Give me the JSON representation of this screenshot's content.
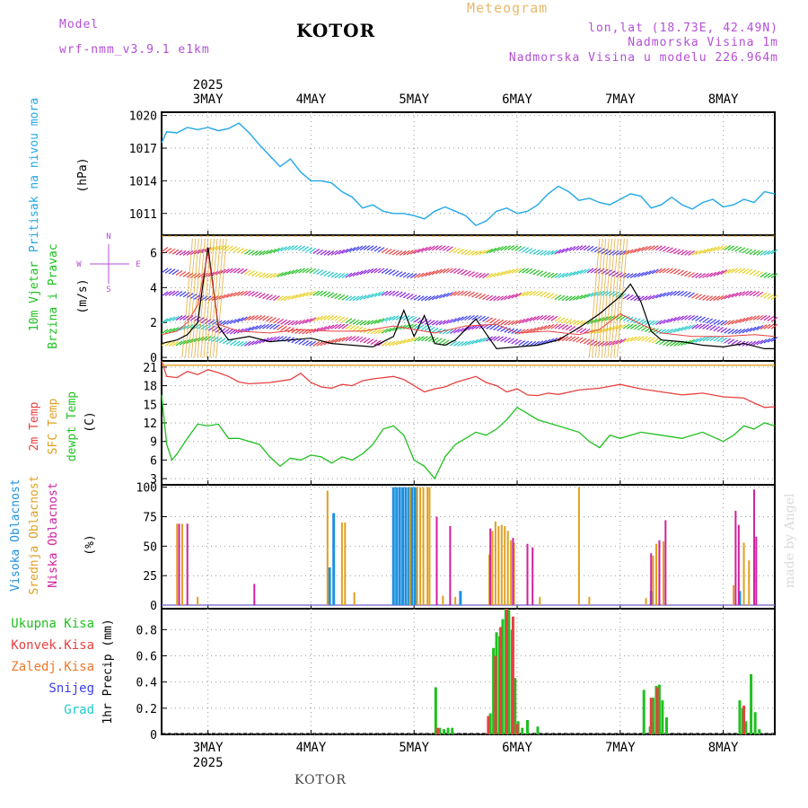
{
  "header": {
    "model_label": "Model",
    "model_name": "wrf-nmm_v3.9.1 e1km",
    "city": "KOTOR",
    "meteogram": "Meteogram",
    "lonlat": "lon,lat (18.73E, 42.49N)",
    "elevation": "Nadmorska Visina 1m",
    "model_elevation": "Nadmorska Visina u modelu 226.964m"
  },
  "footer": {
    "city": "KOTOR",
    "watermark": "made by Angel"
  },
  "colors": {
    "pressure": "#22a8e8",
    "temp2m": "#e84040",
    "sfc": "#e0a020",
    "dewpt": "#20c020",
    "high_cloud": "#1e90e0",
    "mid_cloud": "#e0a020",
    "low_cloud": "#d020a0",
    "precip_total": "#20c020",
    "precip_conv": "#e84040"
  },
  "chart_data": [
    {
      "type": "line",
      "panel": "pressure",
      "ylabels": [
        "Pritisak na nivou mora",
        "(hPa)"
      ],
      "x_days": [
        "3MAY",
        "4MAY",
        "5MAY",
        "6MAY",
        "7MAY",
        "8MAY"
      ],
      "year_label": "2025",
      "xlim": [
        2.55,
        8.5
      ],
      "ylim": [
        1009,
        1020.3
      ],
      "yticks": [
        1011,
        1014,
        1017,
        1020
      ],
      "series": [
        {
          "color": "#22a8e8",
          "x": [
            2.55,
            2.6,
            2.7,
            2.8,
            2.9,
            3.0,
            3.1,
            3.2,
            3.3,
            3.4,
            3.5,
            3.6,
            3.7,
            3.8,
            3.9,
            4.0,
            4.1,
            4.2,
            4.3,
            4.4,
            4.5,
            4.6,
            4.7,
            4.8,
            4.9,
            5.0,
            5.1,
            5.2,
            5.3,
            5.4,
            5.5,
            5.6,
            5.7,
            5.8,
            5.9,
            6.0,
            6.1,
            6.2,
            6.3,
            6.4,
            6.5,
            6.6,
            6.7,
            6.8,
            6.9,
            7.0,
            7.1,
            7.2,
            7.3,
            7.4,
            7.5,
            7.6,
            7.7,
            7.8,
            7.9,
            8.0,
            8.1,
            8.2,
            8.3,
            8.4,
            8.5
          ],
          "y": [
            1017.5,
            1018.5,
            1018.4,
            1018.9,
            1018.7,
            1018.9,
            1018.6,
            1018.8,
            1019.3,
            1018.4,
            1017.3,
            1016.3,
            1015.3,
            1016.0,
            1014.8,
            1014.0,
            1014.0,
            1013.8,
            1013.0,
            1012.5,
            1011.5,
            1011.8,
            1011.2,
            1011.0,
            1011.0,
            1010.8,
            1010.5,
            1011.2,
            1011.6,
            1011.2,
            1010.8,
            1009.9,
            1010.3,
            1011.2,
            1011.5,
            1011.0,
            1011.2,
            1011.8,
            1012.8,
            1013.5,
            1013.0,
            1012.2,
            1012.4,
            1012.0,
            1011.8,
            1012.3,
            1012.8,
            1012.6,
            1011.5,
            1011.8,
            1012.5,
            1011.8,
            1011.4,
            1012.0,
            1012.3,
            1011.6,
            1011.8,
            1012.3,
            1012.0,
            1013.0,
            1012.8
          ]
        }
      ]
    },
    {
      "type": "line",
      "panel": "wind",
      "ylabels": [
        "10m Vjetar",
        "Brzina i Pravac",
        "(m/s)"
      ],
      "compass": [
        "N",
        "W",
        "E",
        "S"
      ],
      "ylim": [
        -0.2,
        7.0
      ],
      "yticks": [
        0,
        2,
        4,
        6
      ],
      "barb_levels": [
        0.8,
        1.5,
        2.0,
        3.4,
        4.7,
        6.0
      ],
      "series": [
        {
          "name": "speed",
          "color": "#000000",
          "x": [
            2.55,
            2.7,
            2.8,
            2.9,
            3.0,
            3.1,
            3.2,
            3.4,
            3.6,
            3.8,
            4.0,
            4.2,
            4.4,
            4.6,
            4.8,
            4.9,
            5.0,
            5.1,
            5.2,
            5.3,
            5.4,
            5.6,
            5.8,
            6.0,
            6.2,
            6.4,
            6.6,
            6.8,
            7.0,
            7.1,
            7.2,
            7.3,
            7.4,
            7.6,
            7.8,
            8.0,
            8.2,
            8.4,
            8.5
          ],
          "y": [
            0.8,
            1.0,
            1.3,
            2.0,
            6.3,
            1.8,
            1.0,
            1.2,
            0.9,
            1.0,
            1.1,
            0.8,
            0.7,
            0.6,
            1.2,
            2.7,
            1.2,
            2.4,
            0.8,
            0.7,
            1.0,
            2.2,
            0.5,
            0.6,
            0.7,
            1.0,
            1.7,
            2.5,
            3.5,
            4.2,
            3.2,
            1.5,
            1.0,
            0.9,
            0.7,
            0.6,
            0.8,
            0.5,
            0.5
          ]
        },
        {
          "name": "gust",
          "color": "#e84040",
          "x": [
            2.55,
            2.7,
            2.8,
            2.9,
            3.0,
            3.1,
            3.3,
            3.6,
            3.9,
            4.2,
            4.5,
            4.8,
            5.0,
            5.2,
            5.5,
            5.8,
            6.0,
            6.3,
            6.6,
            6.8,
            7.0,
            7.2,
            7.4,
            7.7,
            8.0,
            8.3,
            8.5
          ],
          "y": [
            1.3,
            1.5,
            2.0,
            3.0,
            6.0,
            1.9,
            1.5,
            1.4,
            1.6,
            1.5,
            1.5,
            1.8,
            1.6,
            1.4,
            1.8,
            1.9,
            1.4,
            1.5,
            1.3,
            1.6,
            2.5,
            1.9,
            1.4,
            1.2,
            1.2,
            1.3,
            1.2
          ]
        }
      ]
    },
    {
      "type": "line",
      "panel": "temperature",
      "ylabels": [
        "2m Temp",
        "SFC Temp",
        "dewpt Temp",
        "(C)"
      ],
      "ylim": [
        2,
        22
      ],
      "yticks": [
        3,
        6,
        9,
        12,
        15,
        18,
        21
      ],
      "series": [
        {
          "name": "2m Temp",
          "color": "#e84040",
          "x": [
            2.55,
            2.6,
            2.7,
            2.8,
            2.9,
            3.0,
            3.1,
            3.2,
            3.3,
            3.4,
            3.6,
            3.8,
            3.9,
            4.0,
            4.1,
            4.2,
            4.3,
            4.4,
            4.5,
            4.6,
            4.8,
            4.9,
            5.0,
            5.1,
            5.2,
            5.3,
            5.4,
            5.6,
            5.7,
            5.8,
            5.9,
            6.0,
            6.1,
            6.2,
            6.3,
            6.4,
            6.6,
            6.8,
            7.0,
            7.2,
            7.4,
            7.6,
            7.8,
            8.0,
            8.2,
            8.3,
            8.4,
            8.5
          ],
          "y": [
            22.0,
            19.5,
            19.3,
            20.3,
            19.8,
            20.6,
            20.1,
            19.5,
            18.6,
            18.3,
            18.5,
            19.0,
            20.0,
            18.5,
            17.8,
            17.6,
            18.2,
            18.0,
            18.8,
            19.1,
            19.5,
            19.0,
            18.0,
            17.0,
            17.5,
            17.8,
            18.5,
            19.5,
            18.5,
            18.0,
            17.0,
            17.5,
            16.5,
            16.4,
            16.8,
            16.6,
            17.3,
            17.6,
            18.2,
            17.5,
            17.0,
            16.5,
            16.8,
            16.2,
            16.0,
            15.2,
            14.5,
            14.6
          ]
        },
        {
          "name": "SFC Temp",
          "color": "#e0a020",
          "x": [
            2.55,
            8.5
          ],
          "y": [
            21.3,
            21.3
          ]
        },
        {
          "name": "dewpt Temp",
          "color": "#20c020",
          "x": [
            2.55,
            2.6,
            2.65,
            2.7,
            2.8,
            2.9,
            3.0,
            3.1,
            3.2,
            3.3,
            3.5,
            3.6,
            3.7,
            3.8,
            3.9,
            4.0,
            4.1,
            4.2,
            4.3,
            4.4,
            4.5,
            4.6,
            4.7,
            4.8,
            4.9,
            4.95,
            5.0,
            5.1,
            5.2,
            5.3,
            5.4,
            5.5,
            5.6,
            5.7,
            5.8,
            5.9,
            6.0,
            6.1,
            6.2,
            6.3,
            6.4,
            6.5,
            6.6,
            6.7,
            6.8,
            6.9,
            7.0,
            7.2,
            7.4,
            7.6,
            7.8,
            8.0,
            8.1,
            8.2,
            8.3,
            8.4,
            8.5
          ],
          "y": [
            16.5,
            8.5,
            6.0,
            7.0,
            9.5,
            11.8,
            11.5,
            11.8,
            9.5,
            9.5,
            8.5,
            6.5,
            5.0,
            6.3,
            6.0,
            6.8,
            6.5,
            5.5,
            6.5,
            6.0,
            7.0,
            8.5,
            11.0,
            11.5,
            10.0,
            8.0,
            6.0,
            5.0,
            3.0,
            6.5,
            8.5,
            9.5,
            10.5,
            10.0,
            11.0,
            12.5,
            14.5,
            13.5,
            12.5,
            12.0,
            11.5,
            11.0,
            10.5,
            9.0,
            8.0,
            10.0,
            9.5,
            10.5,
            10.0,
            9.5,
            10.5,
            9.0,
            10.0,
            11.5,
            11.0,
            12.0,
            11.5
          ]
        }
      ]
    },
    {
      "type": "bar",
      "panel": "clouds",
      "ylabels": [
        "Visoka Oblacnost",
        "Srednja Oblacnost",
        "Niska Oblacnost",
        "(%)"
      ],
      "ylim": [
        -3,
        102
      ],
      "yticks": [
        0,
        25,
        50,
        75,
        100
      ],
      "series": [
        {
          "name": "Visoka Oblacnost",
          "color": "#1e90e0",
          "x": [
            4.18,
            4.22,
            4.8,
            4.83,
            4.86,
            4.89,
            4.92,
            4.95,
            4.98,
            5.01,
            5.45,
            7.3,
            8.16
          ],
          "y": [
            32,
            78,
            100,
            100,
            100,
            100,
            100,
            100,
            100,
            100,
            12,
            12,
            12
          ]
        },
        {
          "name": "Srednja Oblacnost",
          "color": "#e0a020",
          "x": [
            2.7,
            2.75,
            2.9,
            4.16,
            4.3,
            4.33,
            4.42,
            4.96,
            5.03,
            5.06,
            5.09,
            5.13,
            5.15,
            5.28,
            5.4,
            5.73,
            5.76,
            5.79,
            5.82,
            5.85,
            5.88,
            5.91,
            5.94,
            5.97,
            6.22,
            6.7,
            6.6,
            7.25,
            7.32,
            7.35,
            7.38,
            7.42,
            8.1,
            8.2,
            8.25,
            8.3
          ],
          "y": [
            69,
            69,
            7,
            97,
            70,
            70,
            11,
            100,
            100,
            100,
            100,
            100,
            100,
            8,
            7,
            43,
            63,
            71,
            67,
            68,
            67,
            63,
            55,
            53,
            7,
            7,
            100,
            6,
            42,
            52,
            53,
            54,
            17,
            53,
            38,
            42
          ]
        },
        {
          "name": "Niska Oblacnost",
          "color": "#d020a0",
          "x": [
            2.72,
            2.8,
            3.45,
            5.22,
            5.35,
            5.74,
            5.96,
            6.1,
            6.15,
            7.3,
            7.38,
            7.44,
            8.12,
            8.15,
            8.3,
            8.32
          ],
          "y": [
            69,
            69,
            18,
            75,
            67,
            65,
            57,
            52,
            49,
            44,
            55,
            72,
            80,
            68,
            98,
            58
          ]
        }
      ]
    },
    {
      "type": "bar",
      "panel": "precip",
      "ylabels": [
        "Ukupna Kisa",
        "Konvek.Kisa",
        "Zaledj.Kisa",
        "Snijeg",
        "Grad",
        "1hr Precip (mm)"
      ],
      "label_colors": [
        "#20c020",
        "#e84040",
        "#f07828",
        "#3c3cf0",
        "#20c8c8"
      ],
      "ylim": [
        0,
        0.96
      ],
      "yticks": [
        0.0,
        0.2,
        0.4,
        0.6,
        0.8
      ],
      "series": [
        {
          "name": "Ukupna Kisa",
          "color": "#20c020",
          "x": [
            5.21,
            5.25,
            5.29,
            5.33,
            5.37,
            5.74,
            5.77,
            5.8,
            5.83,
            5.86,
            5.89,
            5.92,
            5.95,
            5.98,
            6.01,
            6.05,
            6.1,
            6.2,
            7.23,
            7.29,
            7.32,
            7.35,
            7.38,
            7.41,
            7.45,
            8.16,
            8.19,
            8.22,
            8.27,
            8.31,
            8.35
          ],
          "y": [
            0.36,
            0.05,
            0.04,
            0.05,
            0.05,
            0.16,
            0.66,
            0.78,
            0.75,
            0.88,
            0.96,
            0.95,
            0.8,
            0.43,
            0.1,
            0.05,
            0.11,
            0.06,
            0.34,
            0.06,
            0.28,
            0.37,
            0.38,
            0.26,
            0.13,
            0.26,
            0.2,
            0.1,
            0.46,
            0.17,
            0.04
          ]
        },
        {
          "name": "Konvek.Kisa",
          "color": "#e84040",
          "x": [
            5.23,
            5.72,
            5.79,
            5.84,
            5.9,
            5.96,
            6.0,
            7.3,
            7.36,
            8.2
          ],
          "y": [
            0.05,
            0.14,
            0.6,
            0.82,
            0.96,
            0.9,
            0.08,
            0.28,
            0.36,
            0.22
          ]
        }
      ]
    }
  ]
}
